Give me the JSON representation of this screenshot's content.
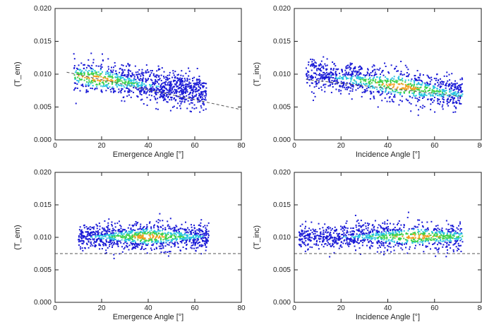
{
  "colors": {
    "axis": "#222222",
    "dashed_line": "#555555",
    "density_low": "#1a1ad6",
    "density_mid": "#2bc4e0",
    "density_high": "#3fd14a",
    "density_peak": "#f0a020",
    "density_max": "#ffffff"
  },
  "chart_data": [
    {
      "type": "scatter",
      "panel": "top-left",
      "xlabel": "Emergence Angle [°]",
      "ylabel": "(T_em)",
      "xlim": [
        0,
        80
      ],
      "ylim": [
        0.0,
        0.02
      ],
      "x_ticks": [
        "0",
        "20",
        "40",
        "60",
        "80"
      ],
      "y_ticks": [
        "0.000",
        "0.005",
        "0.010",
        "0.015",
        "0.020"
      ],
      "cloud": {
        "x_range": [
          8,
          65
        ],
        "y_center_start": 0.0098,
        "y_center_end": 0.0072,
        "y_spread": 0.0022,
        "peak_x": 18
      },
      "reference_line": {
        "x": [
          5,
          80
        ],
        "y": [
          0.0103,
          0.0046
        ],
        "style": "dashed"
      }
    },
    {
      "type": "scatter",
      "panel": "top-right",
      "xlabel": "Incidence Angle [°]",
      "ylabel": "(T_inc)",
      "xlim": [
        0,
        80
      ],
      "ylim": [
        0.0,
        0.02
      ],
      "x_ticks": [
        "0",
        "20",
        "40",
        "60",
        "80"
      ],
      "y_ticks": [
        "0.000",
        "0.005",
        "0.010",
        "0.015",
        "0.020"
      ],
      "cloud": {
        "x_range": [
          5,
          72
        ],
        "y_center_start": 0.0102,
        "y_center_end": 0.0068,
        "y_spread": 0.0022,
        "peak_x": 45
      },
      "reference_line": {
        "x": [
          5,
          72
        ],
        "y": [
          0.0092,
          0.0066
        ],
        "style": "dashed"
      }
    },
    {
      "type": "scatter",
      "panel": "bottom-left",
      "xlabel": "Emergence Angle [°]",
      "ylabel": "(T_em)",
      "xlim": [
        0,
        80
      ],
      "ylim": [
        0.0,
        0.02
      ],
      "x_ticks": [
        "0",
        "20",
        "40",
        "60",
        "80"
      ],
      "y_ticks": [
        "0.000",
        "0.005",
        "0.010",
        "0.015",
        "0.020"
      ],
      "cloud": {
        "x_range": [
          10,
          66
        ],
        "y_center_start": 0.0101,
        "y_center_end": 0.0101,
        "y_spread": 0.0018,
        "peak_x": 40
      },
      "reference_line": {
        "x": [
          0,
          80
        ],
        "y": [
          0.0075,
          0.0075
        ],
        "style": "dashed"
      }
    },
    {
      "type": "scatter",
      "panel": "bottom-right",
      "xlabel": "Incidence Angle [°]",
      "ylabel": "(T_inc)",
      "xlim": [
        0,
        80
      ],
      "ylim": [
        0.0,
        0.02
      ],
      "x_ticks": [
        "0",
        "20",
        "40",
        "60",
        "80"
      ],
      "y_ticks": [
        "0.000",
        "0.005",
        "0.010",
        "0.015",
        "0.020"
      ],
      "cloud": {
        "x_range": [
          2,
          72
        ],
        "y_center_start": 0.0101,
        "y_center_end": 0.0101,
        "y_spread": 0.0018,
        "peak_x": 52
      },
      "reference_line": {
        "x": [
          0,
          80
        ],
        "y": [
          0.0075,
          0.0075
        ],
        "style": "dashed"
      }
    }
  ]
}
